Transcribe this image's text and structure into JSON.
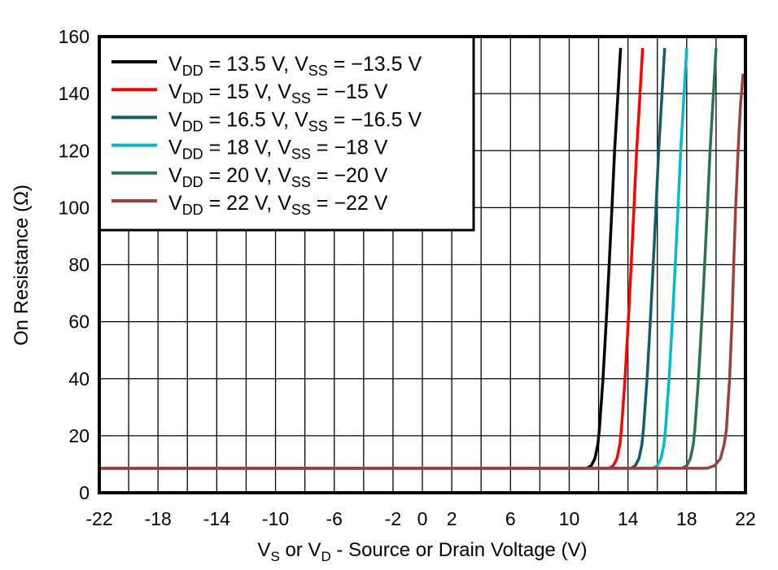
{
  "chart_data": {
    "type": "line",
    "title": "",
    "xlabel": {
      "p1": "V",
      "s1": "S",
      "p2": " or V",
      "s2": "D",
      "p3": " - Source or Drain Voltage (V)"
    },
    "ylabel": "On Resistance (Ω)",
    "xlim": [
      -22,
      22
    ],
    "ylim": [
      0,
      160
    ],
    "x_ticks": [
      -22,
      -18,
      -14,
      -10,
      -6,
      -2,
      0,
      2,
      6,
      10,
      14,
      18,
      22
    ],
    "y_ticks": [
      0,
      20,
      40,
      60,
      80,
      100,
      120,
      140,
      160
    ],
    "x_grid_step": 2,
    "y_grid_step": 20,
    "grid": true,
    "legend_position": "top-left",
    "series": [
      {
        "legend": {
          "a": "V",
          "as": "DD",
          "b": " = 13.5 V, ",
          "c": "V",
          "cs": "SS",
          "d": " = −13.5 V"
        },
        "color": "#000000",
        "points": [
          [
            -22,
            8.6
          ],
          [
            11.2,
            8.6
          ],
          [
            11.5,
            9.5
          ],
          [
            11.75,
            12
          ],
          [
            11.95,
            17
          ],
          [
            12.05,
            22
          ],
          [
            12.3,
            40
          ],
          [
            12.52,
            60
          ],
          [
            12.72,
            80
          ],
          [
            12.91,
            100
          ],
          [
            13.09,
            120
          ],
          [
            13.32,
            140
          ],
          [
            13.5,
            156
          ]
        ]
      },
      {
        "legend": {
          "a": "V",
          "as": "DD",
          "b": " = 15 V, ",
          "c": "V",
          "cs": "SS",
          "d": " = −15 V"
        },
        "color": "#ff0000",
        "points": [
          [
            -22,
            8.6
          ],
          [
            12.7,
            8.6
          ],
          [
            13.0,
            9.5
          ],
          [
            13.25,
            12
          ],
          [
            13.45,
            17
          ],
          [
            13.55,
            22
          ],
          [
            13.8,
            40
          ],
          [
            14.02,
            60
          ],
          [
            14.22,
            80
          ],
          [
            14.41,
            100
          ],
          [
            14.59,
            120
          ],
          [
            14.82,
            140
          ],
          [
            15,
            156
          ]
        ]
      },
      {
        "legend": {
          "a": "V",
          "as": "DD",
          "b": " = 16.5 V, ",
          "c": "V",
          "cs": "SS",
          "d": " = −16.5 V"
        },
        "color": "#175a6b",
        "points": [
          [
            -22,
            8.6
          ],
          [
            14.2,
            8.6
          ],
          [
            14.5,
            9.5
          ],
          [
            14.75,
            12
          ],
          [
            14.95,
            17
          ],
          [
            15.05,
            22
          ],
          [
            15.3,
            40
          ],
          [
            15.52,
            60
          ],
          [
            15.72,
            80
          ],
          [
            15.91,
            100
          ],
          [
            16.09,
            120
          ],
          [
            16.32,
            140
          ],
          [
            16.5,
            156
          ]
        ]
      },
      {
        "legend": {
          "a": "V",
          "as": "DD",
          "b": " = 18 V, ",
          "c": "V",
          "cs": "SS",
          "d": " = −18 V"
        },
        "color": "#00bccd",
        "points": [
          [
            -22,
            8.6
          ],
          [
            15.7,
            8.6
          ],
          [
            16.0,
            9.5
          ],
          [
            16.25,
            12
          ],
          [
            16.45,
            17
          ],
          [
            16.55,
            22
          ],
          [
            16.8,
            40
          ],
          [
            17.02,
            60
          ],
          [
            17.22,
            80
          ],
          [
            17.41,
            100
          ],
          [
            17.59,
            120
          ],
          [
            17.82,
            140
          ],
          [
            18,
            156
          ]
        ]
      },
      {
        "legend": {
          "a": "V",
          "as": "DD",
          "b": " = 20 V, ",
          "c": "V",
          "cs": "SS",
          "d": " = −20 V"
        },
        "color": "#2b7350",
        "points": [
          [
            -22,
            8.6
          ],
          [
            17.7,
            8.6
          ],
          [
            18.0,
            9.5
          ],
          [
            18.25,
            12
          ],
          [
            18.45,
            17
          ],
          [
            18.55,
            22
          ],
          [
            18.8,
            40
          ],
          [
            19.02,
            60
          ],
          [
            19.22,
            80
          ],
          [
            19.41,
            100
          ],
          [
            19.59,
            120
          ],
          [
            19.82,
            140
          ],
          [
            20,
            156
          ]
        ]
      },
      {
        "legend": {
          "a": "V",
          "as": "DD",
          "b": " = 22 V, ",
          "c": "V",
          "cs": "SS",
          "d": " = −22 V"
        },
        "color": "#9e3f3f",
        "points": [
          [
            -22,
            8.6
          ],
          [
            19.4,
            8.6
          ],
          [
            19.9,
            9.5
          ],
          [
            20.3,
            12
          ],
          [
            20.55,
            17
          ],
          [
            20.7,
            22
          ],
          [
            20.92,
            40
          ],
          [
            21.08,
            60
          ],
          [
            21.2,
            80
          ],
          [
            21.33,
            100
          ],
          [
            21.5,
            120
          ],
          [
            21.65,
            135
          ],
          [
            21.84,
            147
          ]
        ]
      }
    ]
  }
}
